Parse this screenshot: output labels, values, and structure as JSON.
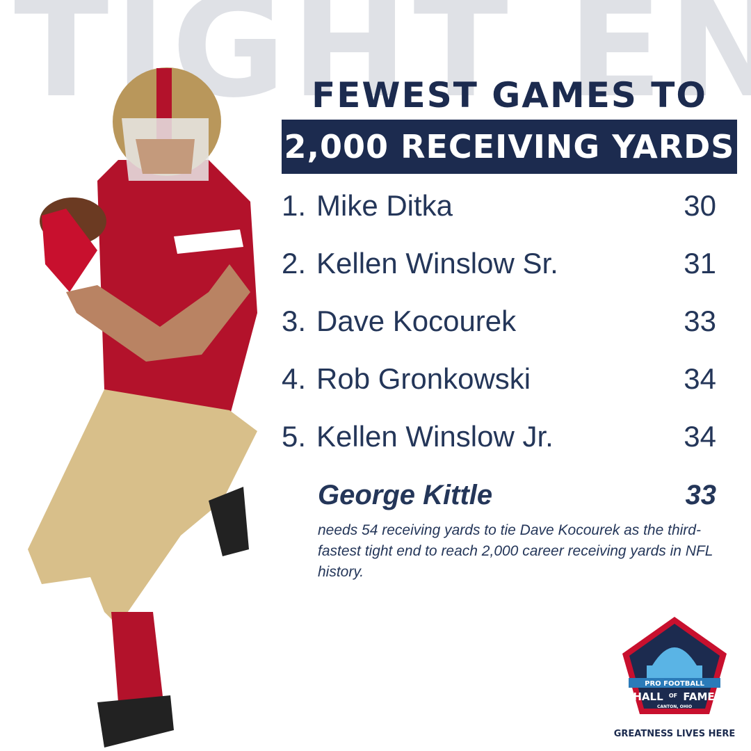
{
  "background_text": "TIGHT END",
  "title": {
    "line1": "FEWEST GAMES TO",
    "line2": "2,000 RECEIVING YARDS"
  },
  "list": [
    {
      "rank": "1.",
      "name": "Mike Ditka",
      "games": 30
    },
    {
      "rank": "2.",
      "name": "Kellen Winslow Sr.",
      "games": 31
    },
    {
      "rank": "3.",
      "name": "Dave Kocourek",
      "games": 33
    },
    {
      "rank": "4.",
      "name": "Rob Gronkowski",
      "games": 34
    },
    {
      "rank": "5.",
      "name": "Kellen Winslow Jr.",
      "games": 34
    }
  ],
  "highlight": {
    "name": "George Kittle",
    "games": 33,
    "note": "needs 54 receiving yards to tie Dave Kocourek as the third-fastest tight end to reach 2,000 career receiving yards in NFL history."
  },
  "logo": {
    "line1": "PRO FOOTBALL",
    "hall": "HALL",
    "of": "OF",
    "fame": "FAME",
    "location": "CANTON, OHIO"
  },
  "tagline": "GREATNESS LIVES HERE"
}
